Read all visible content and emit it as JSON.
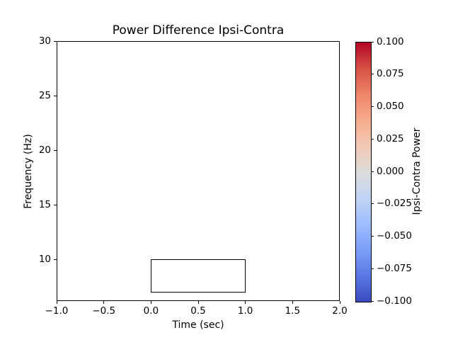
{
  "figure": {
    "background_color": "#ffffff",
    "foreground_color": "#000000"
  },
  "chart_data": {
    "type": "heatmap",
    "title": "Power Difference Ipsi-Contra",
    "xlabel": "Time (sec)",
    "ylabel": "Frequency (Hz)",
    "xlim": [
      -1.0,
      2.0
    ],
    "ylim": [
      6.2,
      30
    ],
    "grid": false,
    "plot_area_empty": true,
    "x_ticks": [
      {
        "value": -1.0,
        "label": "−1.0"
      },
      {
        "value": -0.5,
        "label": "−0.5"
      },
      {
        "value": 0.0,
        "label": "0.0"
      },
      {
        "value": 0.5,
        "label": "0.5"
      },
      {
        "value": 1.0,
        "label": "1.0"
      },
      {
        "value": 1.5,
        "label": "1.5"
      },
      {
        "value": 2.0,
        "label": "2.0"
      }
    ],
    "y_ticks": [
      {
        "value": 10,
        "label": "10"
      },
      {
        "value": 15,
        "label": "15"
      },
      {
        "value": 20,
        "label": "20"
      },
      {
        "value": 25,
        "label": "25"
      },
      {
        "value": 30,
        "label": "30"
      }
    ],
    "annotations": [
      {
        "type": "rectangle",
        "x0": 0.0,
        "x1": 1.0,
        "y0": 7.0,
        "y1": 10.0,
        "edge_color": "#000000",
        "fill": "none"
      }
    ],
    "colorbar": {
      "label": "Ipsi-Contra Power",
      "colormap": "coolwarm",
      "vmin": -0.1,
      "vmax": 0.1,
      "ticks": [
        {
          "value": 0.1,
          "label": "0.100"
        },
        {
          "value": 0.075,
          "label": "0.075"
        },
        {
          "value": 0.05,
          "label": "0.050"
        },
        {
          "value": 0.025,
          "label": "0.025"
        },
        {
          "value": 0.0,
          "label": "0.000"
        },
        {
          "value": -0.025,
          "label": "−0.025"
        },
        {
          "value": -0.05,
          "label": "−0.050"
        },
        {
          "value": -0.075,
          "label": "−0.075"
        },
        {
          "value": -0.1,
          "label": "−0.100"
        }
      ],
      "gradient_stops": [
        {
          "pos": 0,
          "color": "#3b4cc0"
        },
        {
          "pos": 10,
          "color": "#5977e3"
        },
        {
          "pos": 20,
          "color": "#7b9ff9"
        },
        {
          "pos": 30,
          "color": "#9ebeff"
        },
        {
          "pos": 40,
          "color": "#c0d4f5"
        },
        {
          "pos": 50,
          "color": "#dddcdb"
        },
        {
          "pos": 60,
          "color": "#f2cab5"
        },
        {
          "pos": 70,
          "color": "#f7ac8e"
        },
        {
          "pos": 80,
          "color": "#ee8468"
        },
        {
          "pos": 90,
          "color": "#d65244"
        },
        {
          "pos": 100,
          "color": "#b40426"
        }
      ]
    }
  }
}
